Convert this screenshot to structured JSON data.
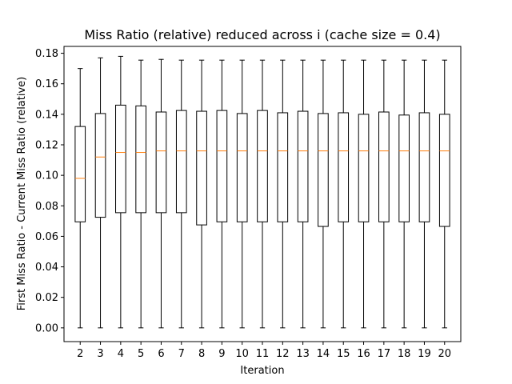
{
  "chart_data": {
    "type": "box",
    "title": "Miss Ratio (relative) reduced across i (cache size = 0.4)",
    "xlabel": "Iteration",
    "ylabel": "First Miss Ratio - Current Miss Ratio (relative)",
    "ylim": [
      -0.009,
      0.1845
    ],
    "yticks": [
      "0.00",
      "0.02",
      "0.04",
      "0.06",
      "0.08",
      "0.10",
      "0.12",
      "0.14",
      "0.16",
      "0.18"
    ],
    "categories": [
      "2",
      "3",
      "4",
      "5",
      "6",
      "7",
      "8",
      "9",
      "10",
      "11",
      "12",
      "13",
      "14",
      "15",
      "16",
      "17",
      "18",
      "19",
      "20"
    ],
    "boxes": [
      {
        "x": "2",
        "whisker_low": 0.0,
        "q1": 0.0695,
        "median": 0.098,
        "q3": 0.132,
        "whisker_high": 0.17
      },
      {
        "x": "3",
        "whisker_low": 0.0,
        "q1": 0.0725,
        "median": 0.112,
        "q3": 0.1405,
        "whisker_high": 0.177
      },
      {
        "x": "4",
        "whisker_low": 0.0,
        "q1": 0.0755,
        "median": 0.115,
        "q3": 0.146,
        "whisker_high": 0.178
      },
      {
        "x": "5",
        "whisker_low": 0.0,
        "q1": 0.0755,
        "median": 0.115,
        "q3": 0.1455,
        "whisker_high": 0.1755
      },
      {
        "x": "6",
        "whisker_low": 0.0,
        "q1": 0.0755,
        "median": 0.116,
        "q3": 0.1415,
        "whisker_high": 0.176
      },
      {
        "x": "7",
        "whisker_low": 0.0,
        "q1": 0.0755,
        "median": 0.116,
        "q3": 0.1425,
        "whisker_high": 0.1755
      },
      {
        "x": "8",
        "whisker_low": 0.0,
        "q1": 0.0675,
        "median": 0.116,
        "q3": 0.142,
        "whisker_high": 0.1755
      },
      {
        "x": "9",
        "whisker_low": 0.0,
        "q1": 0.0695,
        "median": 0.116,
        "q3": 0.1425,
        "whisker_high": 0.1755
      },
      {
        "x": "10",
        "whisker_low": 0.0,
        "q1": 0.0695,
        "median": 0.116,
        "q3": 0.1405,
        "whisker_high": 0.1755
      },
      {
        "x": "11",
        "whisker_low": 0.0,
        "q1": 0.0695,
        "median": 0.116,
        "q3": 0.1425,
        "whisker_high": 0.1755
      },
      {
        "x": "12",
        "whisker_low": 0.0,
        "q1": 0.0695,
        "median": 0.116,
        "q3": 0.141,
        "whisker_high": 0.1755
      },
      {
        "x": "13",
        "whisker_low": 0.0,
        "q1": 0.0695,
        "median": 0.116,
        "q3": 0.142,
        "whisker_high": 0.1755
      },
      {
        "x": "14",
        "whisker_low": 0.0,
        "q1": 0.0665,
        "median": 0.116,
        "q3": 0.1405,
        "whisker_high": 0.1755
      },
      {
        "x": "15",
        "whisker_low": 0.0,
        "q1": 0.0695,
        "median": 0.116,
        "q3": 0.141,
        "whisker_high": 0.1755
      },
      {
        "x": "16",
        "whisker_low": 0.0,
        "q1": 0.0695,
        "median": 0.116,
        "q3": 0.14,
        "whisker_high": 0.1755
      },
      {
        "x": "17",
        "whisker_low": 0.0,
        "q1": 0.0695,
        "median": 0.116,
        "q3": 0.1415,
        "whisker_high": 0.1755
      },
      {
        "x": "18",
        "whisker_low": 0.0,
        "q1": 0.0695,
        "median": 0.116,
        "q3": 0.1395,
        "whisker_high": 0.1755
      },
      {
        "x": "19",
        "whisker_low": 0.0,
        "q1": 0.0695,
        "median": 0.116,
        "q3": 0.141,
        "whisker_high": 0.1755
      },
      {
        "x": "20",
        "whisker_low": 0.0,
        "q1": 0.0665,
        "median": 0.116,
        "q3": 0.14,
        "whisker_high": 0.1755
      }
    ],
    "box_color": "#000000",
    "median_color": "#ff7f0e",
    "grid": false,
    "legend": "none"
  }
}
